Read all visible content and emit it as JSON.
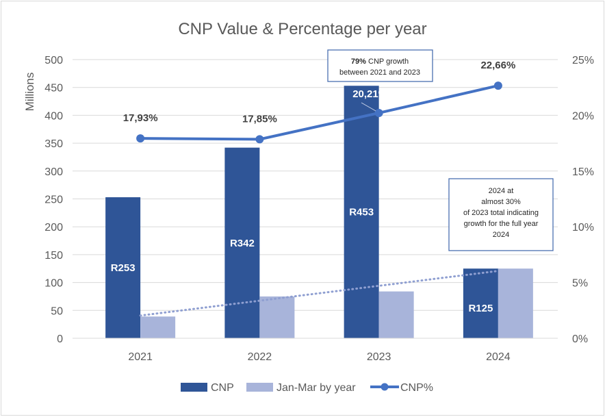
{
  "chart_data": {
    "type": "bar",
    "title": "CNP Value & Percentage per year",
    "categories": [
      "2021",
      "2022",
      "2023",
      "2024"
    ],
    "ylabel": "Millions",
    "y_ticks": [
      "0",
      "50",
      "100",
      "150",
      "200",
      "250",
      "300",
      "350",
      "400",
      "450",
      "500"
    ],
    "ylim": [
      0,
      500
    ],
    "y2_ticks": [
      "0%",
      "5%",
      "10%",
      "15%",
      "20%",
      "25%"
    ],
    "y2lim": [
      0,
      25
    ],
    "grid": true,
    "legend_position": "bottom",
    "series": [
      {
        "name": "CNP",
        "type": "bar",
        "axis": "left",
        "color": "#2f5597",
        "values": [
          253,
          342,
          453,
          125
        ],
        "data_labels": [
          "R253",
          "R342",
          "R453",
          "R125"
        ]
      },
      {
        "name": "Jan-Mar by year",
        "type": "bar",
        "axis": "left",
        "color": "#a8b4da",
        "values": [
          39,
          75,
          84,
          125
        ],
        "trendline": "linear-dotted"
      },
      {
        "name": "CNP%",
        "type": "line",
        "axis": "right",
        "color": "#4472c4",
        "values": [
          17.93,
          17.85,
          20.21,
          22.66
        ],
        "data_labels": [
          "17,93%",
          "17,85%",
          "20,21%",
          "22,66%"
        ]
      }
    ],
    "annotations": [
      {
        "id": "growth",
        "lines": [
          {
            "bold": "79%",
            "text": " CNP growth"
          },
          {
            "bold": "",
            "text": "between 2021 and 2023"
          }
        ],
        "points_to": "2023 CNP%"
      },
      {
        "id": "projection",
        "lines": [
          {
            "bold": "",
            "text": "2024 at"
          },
          {
            "bold": "",
            "text": "almost 30%"
          },
          {
            "bold": "",
            "text": "of 2023 total indicating"
          },
          {
            "bold": "",
            "text": "growth for the full year"
          },
          {
            "bold": "",
            "text": "2024"
          }
        ]
      }
    ]
  }
}
